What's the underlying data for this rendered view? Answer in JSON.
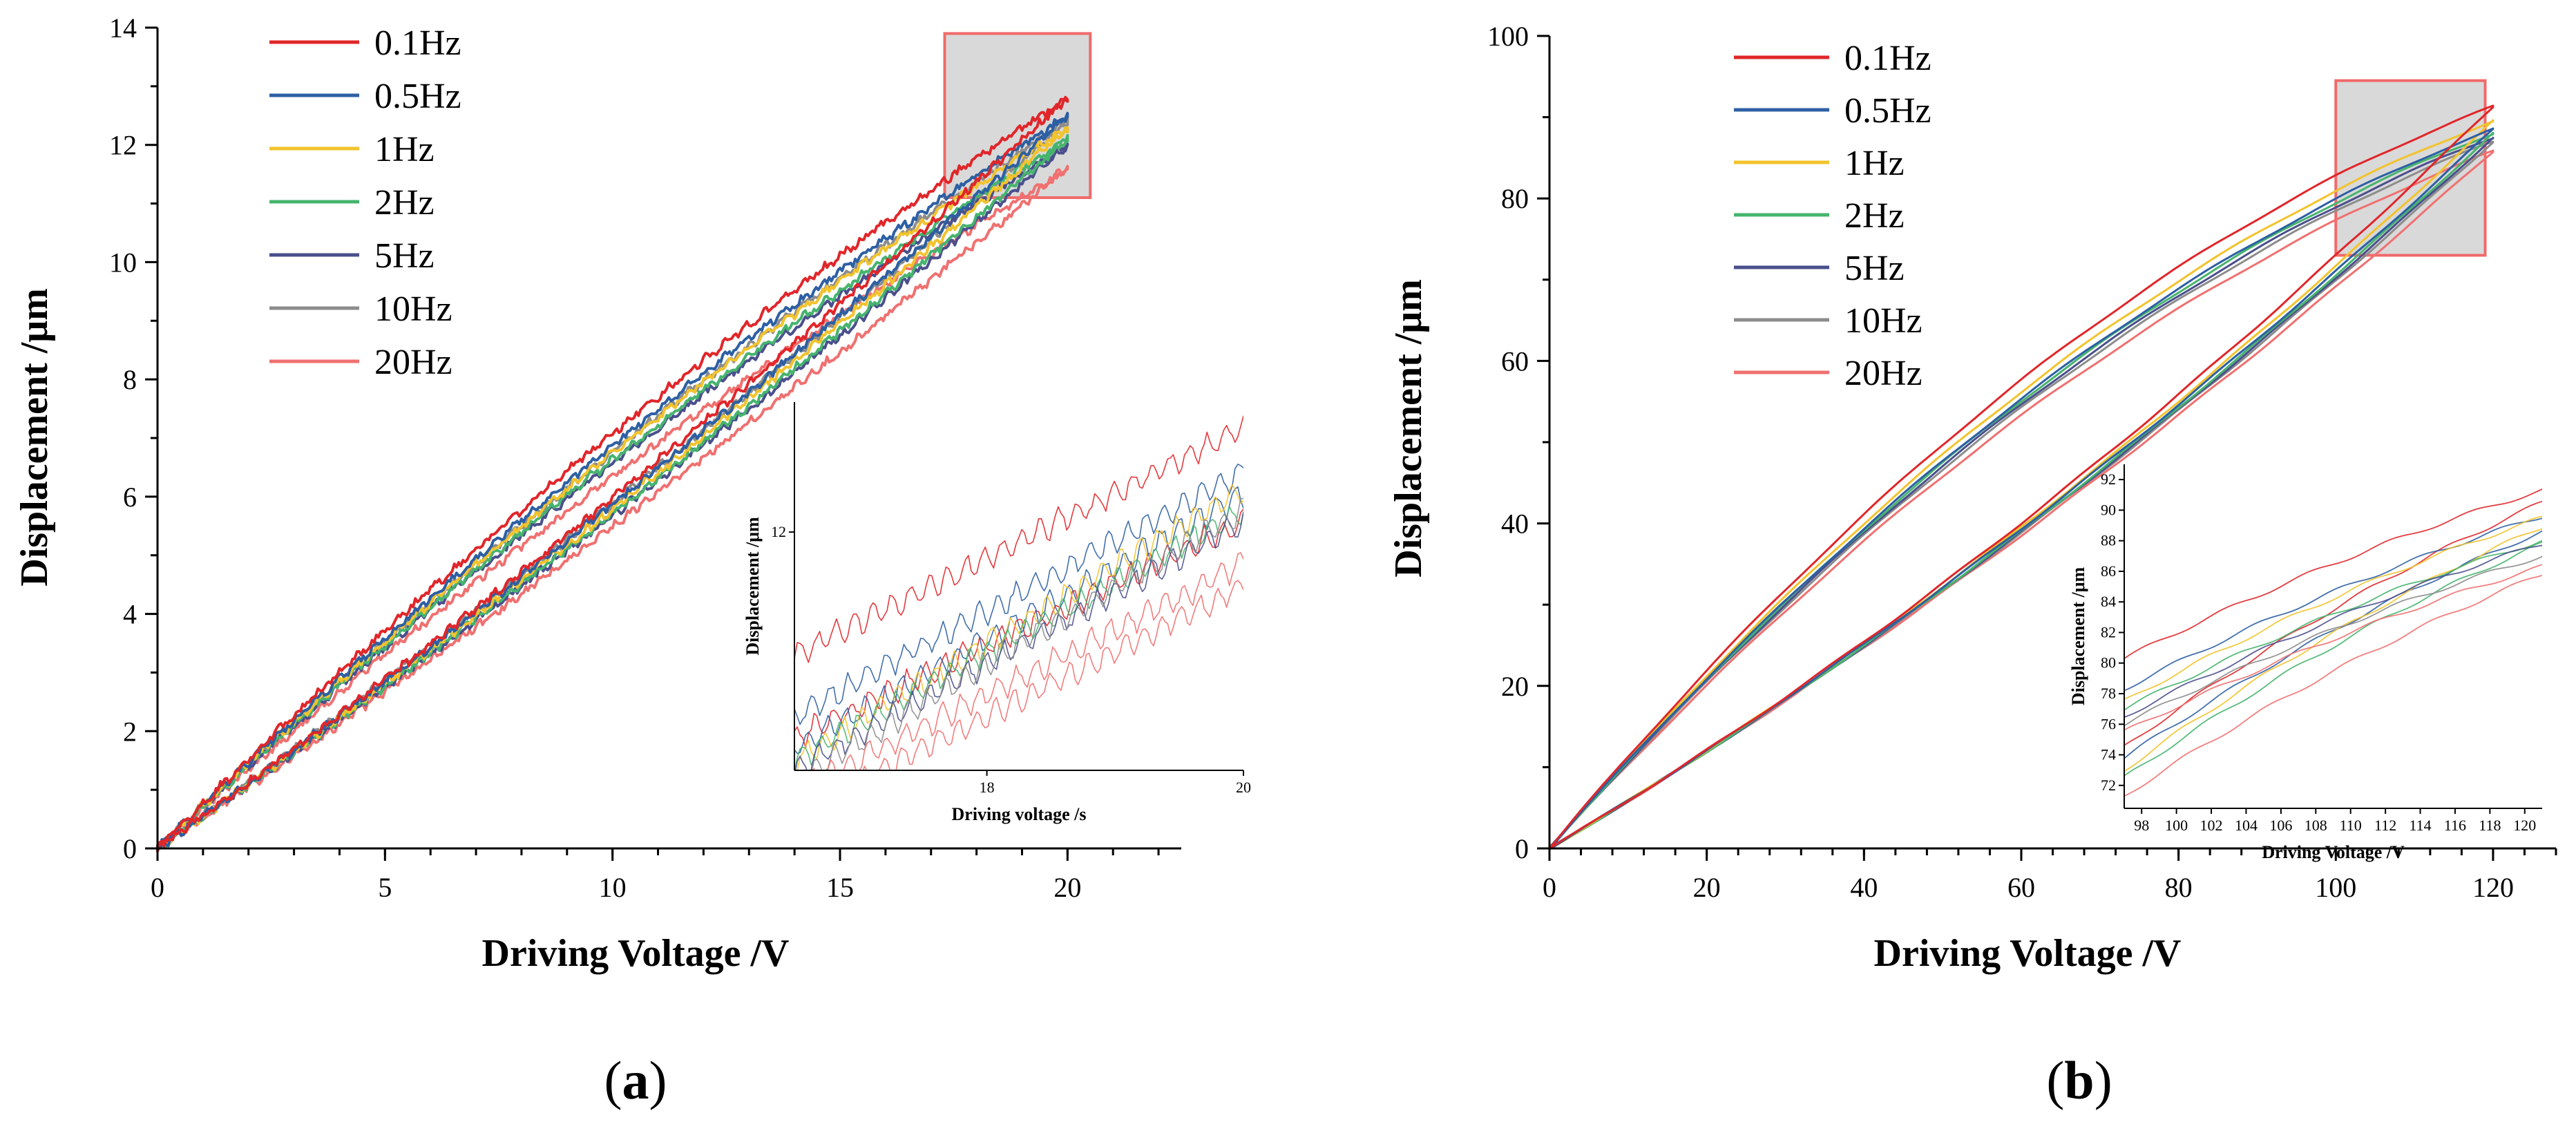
{
  "chart_data": [
    {
      "id": "a",
      "type": "line",
      "panel_label_prefix": "(",
      "panel_label_letter": "a",
      "panel_label_suffix": ")",
      "xlabel": "Driving Voltage  /V",
      "ylabel": "Displacement  /μm",
      "xlim": [
        0,
        22.5
      ],
      "ylim": [
        0,
        14
      ],
      "xticks": [
        0,
        5,
        10,
        15,
        20
      ],
      "yticks": [
        0,
        2,
        4,
        6,
        8,
        10,
        12,
        14
      ],
      "grid": false,
      "legend_position": "top-left",
      "max_voltage": 20,
      "series": [
        {
          "name": "0.1Hz",
          "color": "#e0262a",
          "peak": 12.8,
          "loop_width": 0.55
        },
        {
          "name": "0.5Hz",
          "color": "#2d5fa3",
          "peak": 12.5,
          "loop_width": 0.5
        },
        {
          "name": "1Hz",
          "color": "#f2c32c",
          "peak": 12.3,
          "loop_width": 0.48
        },
        {
          "name": "2Hz",
          "color": "#46b46e",
          "peak": 12.1,
          "loop_width": 0.46
        },
        {
          "name": "5Hz",
          "color": "#4a4f8c",
          "peak": 12.0,
          "loop_width": 0.45
        },
        {
          "name": "10Hz",
          "color": "#8c8c8c",
          "peak": 12.4,
          "loop_width": 0.44
        },
        {
          "name": "20Hz",
          "color": "#f07070",
          "peak": 11.6,
          "loop_width": 0.42
        }
      ],
      "highlight_region": {
        "x": [
          17.3,
          20.5
        ],
        "y": [
          11.1,
          13.9
        ]
      },
      "inset": {
        "xlabel": "Driving voltage  /s",
        "ylabel": "Displacement  /μm",
        "xlim": [
          16.5,
          20
        ],
        "ylim": [
          10.9,
          12.6
        ],
        "xticks": [
          18,
          20
        ],
        "yticks": [
          12
        ],
        "curves": [
          {
            "color": "#e0262a",
            "start": 11.43,
            "end": 12.48
          },
          {
            "color": "#e0262a",
            "start": 11.05,
            "end": 12.05
          },
          {
            "color": "#2d5fa3",
            "start": 11.15,
            "end": 12.28
          },
          {
            "color": "#2d5fa3",
            "start": 11.0,
            "end": 12.17
          },
          {
            "color": "#f2c32c",
            "start": 10.95,
            "end": 12.2
          },
          {
            "color": "#46b46e",
            "start": 10.95,
            "end": 12.1
          },
          {
            "color": "#4a4f8c",
            "start": 10.9,
            "end": 12.05
          },
          {
            "color": "#8c8c8c",
            "start": 10.85,
            "end": 12.1
          },
          {
            "color": "#f07070",
            "start": 10.8,
            "end": 11.85
          },
          {
            "color": "#f07070",
            "start": 10.7,
            "end": 11.75
          }
        ]
      }
    },
    {
      "id": "b",
      "type": "line",
      "panel_label_prefix": "(",
      "panel_label_letter": "b",
      "panel_label_suffix": ")",
      "xlabel": "Driving Voltage  /V",
      "ylabel": "Displacement  /μm",
      "xlim": [
        0,
        128
      ],
      "ylim": [
        0,
        100
      ],
      "xticks": [
        0,
        20,
        40,
        60,
        80,
        100,
        120
      ],
      "yticks": [
        0,
        20,
        40,
        60,
        80,
        100
      ],
      "grid": false,
      "legend_position": "top-left",
      "max_voltage": 120,
      "series": [
        {
          "name": "0.1Hz",
          "color": "#e0262a",
          "peak": 91.3,
          "loop_width": 5.5
        },
        {
          "name": "0.5Hz",
          "color": "#2d5fa3",
          "peak": 88.5,
          "loop_width": 5.0
        },
        {
          "name": "1Hz",
          "color": "#f2c32c",
          "peak": 89.5,
          "loop_width": 5.2
        },
        {
          "name": "2Hz",
          "color": "#46b46e",
          "peak": 88.0,
          "loop_width": 5.0
        },
        {
          "name": "5Hz",
          "color": "#4a4f8c",
          "peak": 87.5,
          "loop_width": 4.9
        },
        {
          "name": "10Hz",
          "color": "#8c8c8c",
          "peak": 87.0,
          "loop_width": 4.8
        },
        {
          "name": "20Hz",
          "color": "#f07070",
          "peak": 85.8,
          "loop_width": 4.6
        }
      ],
      "highlight_region": {
        "x": [
          100,
          119
        ],
        "y": [
          73,
          94.5
        ]
      },
      "inset": {
        "xlabel": "Driving Voltage  /V",
        "ylabel": "Displacement  /μm",
        "xlim": [
          97,
          121
        ],
        "ylim": [
          70.5,
          93
        ],
        "xticks": [
          98,
          100,
          102,
          104,
          106,
          108,
          110,
          112,
          114,
          116,
          118,
          120
        ],
        "yticks": [
          72,
          74,
          76,
          78,
          80,
          82,
          84,
          86,
          88,
          90,
          92
        ],
        "curves": [
          {
            "color": "#e0262a",
            "start": 80.3,
            "end": 91.3
          },
          {
            "color": "#e0262a",
            "start": 74.5,
            "end": 90.5
          },
          {
            "color": "#2d5fa3",
            "start": 78.3,
            "end": 89.6
          },
          {
            "color": "#2d5fa3",
            "start": 73.8,
            "end": 88.6
          },
          {
            "color": "#f2c32c",
            "start": 77.5,
            "end": 89.5
          },
          {
            "color": "#f2c32c",
            "start": 73.0,
            "end": 88.9
          },
          {
            "color": "#46b46e",
            "start": 77.0,
            "end": 88.0
          },
          {
            "color": "#46b46e",
            "start": 72.5,
            "end": 87.8
          },
          {
            "color": "#4a4f8c",
            "start": 76.5,
            "end": 87.8
          },
          {
            "color": "#8c8c8c",
            "start": 76.0,
            "end": 87.0
          },
          {
            "color": "#f07070",
            "start": 75.5,
            "end": 86.3
          },
          {
            "color": "#f07070",
            "start": 71.3,
            "end": 85.8
          }
        ]
      }
    }
  ]
}
